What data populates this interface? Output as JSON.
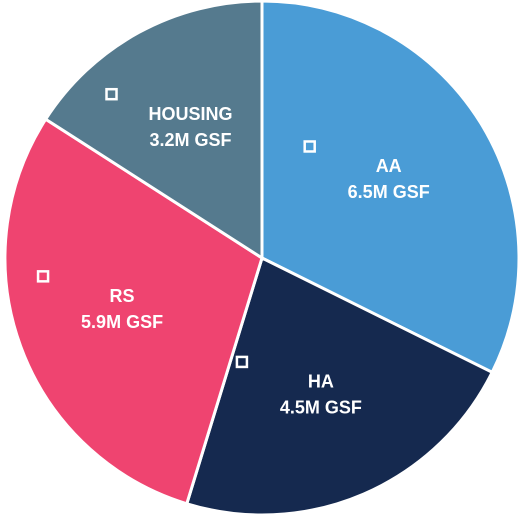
{
  "chart_data": {
    "type": "pie",
    "categories": [
      "AA",
      "HA",
      "RS",
      "HOUSING"
    ],
    "values": [
      6.5,
      4.5,
      5.9,
      3.2
    ],
    "value_labels": [
      "6.5M GSF",
      "4.5M GSF",
      "5.9M GSF",
      "3.2M GSF"
    ],
    "colors": [
      "#4a9cd6",
      "#15294f",
      "#ef4470",
      "#557a8e"
    ]
  }
}
